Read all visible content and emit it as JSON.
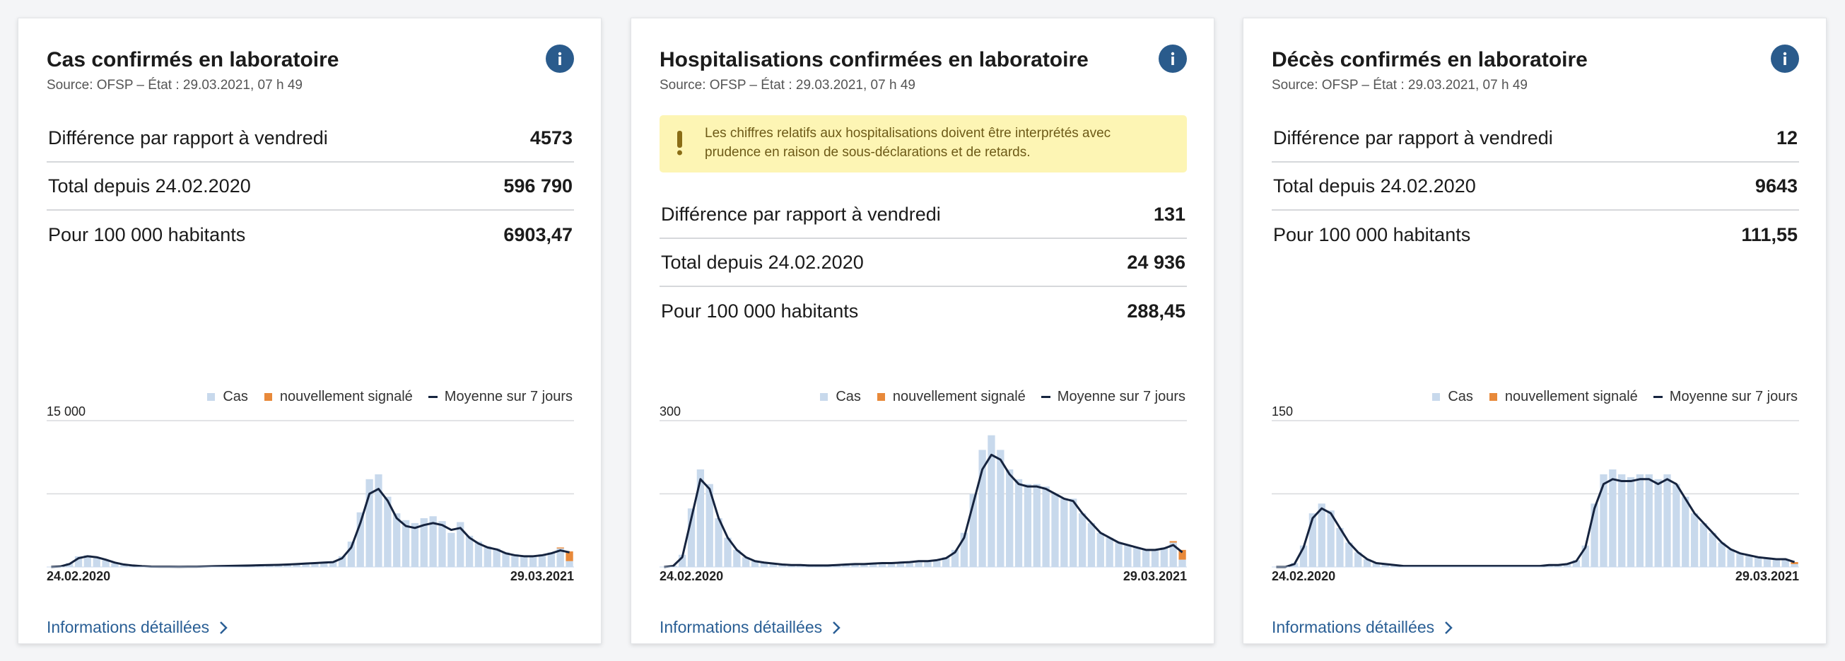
{
  "cards": [
    {
      "title": "Cas confirmés en laboratoire",
      "source": "Source: OFSP – État : 29.03.2021, 07 h 49",
      "rows": [
        {
          "label": "Différence par rapport à vendredi",
          "value": "4573"
        },
        {
          "label": "Total depuis 24.02.2020",
          "value": "596 790"
        },
        {
          "label": "Pour 100 000 habitants",
          "value": "6903,47"
        }
      ],
      "chart": {
        "type": "bar",
        "categories": [
          "24.02.2020",
          null,
          null,
          null,
          null,
          null,
          null,
          null,
          null,
          null,
          null,
          null,
          null,
          null,
          null,
          null,
          null,
          null,
          null,
          null,
          null,
          null,
          null,
          null,
          null,
          null,
          null,
          null,
          null,
          null,
          null,
          null,
          null,
          null,
          null,
          null,
          null,
          null,
          null,
          null,
          null,
          null,
          null,
          null,
          null,
          null,
          null,
          null,
          null,
          null,
          null,
          null,
          null,
          null,
          null,
          null,
          null,
          "29.03.2021"
        ],
        "ylim": [
          0,
          15000
        ],
        "yticks": [
          {
            "value": 7500,
            "label": null
          },
          {
            "value": 15000,
            "label": "15 000"
          }
        ],
        "grid": true,
        "series": [
          {
            "name": "Cas",
            "color": "#c8d9ec",
            "values": [
              10,
              80,
              400,
              1100,
              1200,
              900,
              700,
              400,
              250,
              150,
              80,
              40,
              30,
              20,
              20,
              30,
              30,
              60,
              90,
              110,
              130,
              150,
              160,
              190,
              220,
              230,
              270,
              320,
              380,
              420,
              480,
              560,
              1100,
              2600,
              5600,
              9000,
              9500,
              7200,
              5500,
              4800,
              4500,
              5000,
              5200,
              4700,
              3500,
              4600,
              3200,
              2600,
              2100,
              1900,
              1500,
              1300,
              1200,
              1200,
              1300,
              1500,
              1900,
              600
            ]
          },
          {
            "name": "nouvellement signalé",
            "color": "#e8893a",
            "values": [
              null,
              null,
              null,
              null,
              null,
              null,
              null,
              null,
              null,
              null,
              null,
              null,
              null,
              null,
              null,
              null,
              null,
              null,
              null,
              null,
              null,
              null,
              null,
              null,
              null,
              null,
              null,
              null,
              null,
              null,
              null,
              null,
              null,
              null,
              null,
              null,
              null,
              null,
              null,
              null,
              null,
              null,
              null,
              null,
              null,
              null,
              null,
              null,
              null,
              null,
              null,
              null,
              null,
              null,
              null,
              null,
              100,
              1000
            ]
          },
          {
            "name": "Moyenne sur 7 jours",
            "color": "#16243f",
            "type": "line",
            "values": [
              5,
              50,
              300,
              900,
              1100,
              1000,
              750,
              450,
              250,
              150,
              80,
              40,
              30,
              25,
              20,
              25,
              30,
              50,
              80,
              100,
              120,
              140,
              150,
              180,
              200,
              220,
              250,
              300,
              350,
              400,
              450,
              500,
              900,
              2000,
              4500,
              7500,
              8000,
              6800,
              5000,
              4200,
              4000,
              4300,
              4500,
              4300,
              3800,
              4000,
              3000,
              2400,
              2000,
              1800,
              1400,
              1200,
              1100,
              1100,
              1200,
              1400,
              1700,
              1500
            ]
          }
        ]
      },
      "link": "Informations détaillées"
    },
    {
      "title": "Hospitalisations confirmées en laboratoire",
      "source": "Source: OFSP – État : 29.03.2021, 07 h 49",
      "notice": "Les chiffres relatifs aux hospitalisations doivent être interprétés avec prudence en raison de sous-déclarations et de retards.",
      "rows": [
        {
          "label": "Différence par rapport à vendredi",
          "value": "131"
        },
        {
          "label": "Total depuis 24.02.2020",
          "value": "24 936"
        },
        {
          "label": "Pour 100 000 habitants",
          "value": "288,45"
        }
      ],
      "chart": {
        "type": "bar",
        "categories": [
          "24.02.2020",
          null,
          null,
          null,
          null,
          null,
          null,
          null,
          null,
          null,
          null,
          null,
          null,
          null,
          null,
          null,
          null,
          null,
          null,
          null,
          null,
          null,
          null,
          null,
          null,
          null,
          null,
          null,
          null,
          null,
          null,
          null,
          null,
          null,
          null,
          null,
          null,
          null,
          null,
          null,
          null,
          null,
          null,
          null,
          null,
          null,
          null,
          null,
          null,
          null,
          null,
          null,
          null,
          null,
          null,
          null,
          null,
          "29.03.2021"
        ],
        "ylim": [
          0,
          300
        ],
        "yticks": [
          {
            "value": 150,
            "label": null
          },
          300
        ],
        "grid": true,
        "series": [
          {
            "name": "Cas",
            "color": "#c8d9ec",
            "values": [
              0,
              3,
              25,
              120,
              200,
              170,
              100,
              60,
              35,
              20,
              12,
              9,
              7,
              5,
              4,
              4,
              3,
              3,
              3,
              4,
              5,
              6,
              6,
              7,
              8,
              8,
              9,
              10,
              12,
              12,
              14,
              20,
              35,
              70,
              150,
              240,
              270,
              240,
              200,
              180,
              170,
              170,
              165,
              150,
              140,
              140,
              110,
              90,
              70,
              60,
              50,
              45,
              40,
              35,
              35,
              40,
              50,
              15
            ]
          },
          {
            "name": "nouvellement signalé",
            "color": "#e8893a",
            "values": [
              null,
              null,
              null,
              null,
              null,
              null,
              null,
              null,
              null,
              null,
              null,
              null,
              null,
              null,
              null,
              null,
              null,
              null,
              null,
              null,
              null,
              null,
              null,
              null,
              null,
              null,
              null,
              null,
              null,
              null,
              null,
              null,
              null,
              null,
              null,
              null,
              null,
              null,
              null,
              null,
              null,
              null,
              null,
              null,
              null,
              null,
              null,
              null,
              null,
              null,
              null,
              null,
              null,
              null,
              null,
              null,
              3,
              20
            ]
          },
          {
            "name": "Moyenne sur 7 jours",
            "color": "#16243f",
            "type": "line",
            "values": [
              0,
              2,
              20,
              100,
              180,
              160,
              100,
              60,
              35,
              20,
              12,
              9,
              7,
              5,
              4,
              4,
              3,
              3,
              3,
              4,
              5,
              6,
              6,
              7,
              8,
              8,
              9,
              10,
              12,
              12,
              14,
              18,
              30,
              60,
              130,
              200,
              230,
              220,
              190,
              170,
              165,
              165,
              160,
              150,
              140,
              135,
              110,
              90,
              70,
              60,
              50,
              45,
              40,
              35,
              35,
              38,
              45,
              30
            ]
          }
        ]
      },
      "link": "Informations détaillées"
    },
    {
      "title": "Décès confirmés en laboratoire",
      "source": "Source: OFSP – État : 29.03.2021, 07 h 49",
      "rows": [
        {
          "label": "Différence par rapport à vendredi",
          "value": "12"
        },
        {
          "label": "Total depuis 24.02.2020",
          "value": "9643"
        },
        {
          "label": "Pour 100 000 habitants",
          "value": "111,55"
        }
      ],
      "chart": {
        "type": "bar",
        "categories": [
          "24.02.2020",
          null,
          null,
          null,
          null,
          null,
          null,
          null,
          null,
          null,
          null,
          null,
          null,
          null,
          null,
          null,
          null,
          null,
          null,
          null,
          null,
          null,
          null,
          null,
          null,
          null,
          null,
          null,
          null,
          null,
          null,
          null,
          null,
          null,
          null,
          null,
          null,
          null,
          null,
          null,
          null,
          null,
          null,
          null,
          null,
          null,
          null,
          null,
          null,
          null,
          null,
          null,
          null,
          null,
          null,
          null,
          null,
          "29.03.2021"
        ],
        "ylim": [
          0,
          150
        ],
        "yticks": [
          {
            "value": 75,
            "label": null
          },
          150
        ],
        "grid": true,
        "series": [
          {
            "name": "Cas",
            "color": "#c8d9ec",
            "values": [
              0,
              0,
              4,
              22,
              55,
              65,
              58,
              40,
              25,
              15,
              8,
              4,
              3,
              2,
              1,
              1,
              1,
              1,
              1,
              1,
              1,
              1,
              1,
              1,
              1,
              1,
              1,
              1,
              1,
              1,
              2,
              2,
              3,
              7,
              22,
              65,
              95,
              100,
              95,
              92,
              95,
              95,
              90,
              95,
              85,
              72,
              55,
              45,
              35,
              25,
              18,
              14,
              12,
              10,
              9,
              8,
              8,
              3
            ]
          },
          {
            "name": "nouvellement signalé",
            "color": "#e8893a",
            "values": [
              null,
              null,
              null,
              null,
              null,
              null,
              null,
              null,
              null,
              null,
              null,
              null,
              null,
              null,
              null,
              null,
              null,
              null,
              null,
              null,
              null,
              null,
              null,
              null,
              null,
              null,
              null,
              null,
              null,
              null,
              null,
              null,
              null,
              null,
              null,
              null,
              null,
              null,
              null,
              null,
              null,
              null,
              null,
              null,
              null,
              null,
              null,
              null,
              null,
              null,
              null,
              null,
              null,
              null,
              null,
              null,
              null,
              2
            ]
          },
          {
            "name": "Moyenne sur 7 jours",
            "color": "#16243f",
            "type": "line",
            "values": [
              0,
              0,
              3,
              20,
              50,
              60,
              55,
              40,
              25,
              15,
              8,
              4,
              3,
              2,
              1,
              1,
              1,
              1,
              1,
              1,
              1,
              1,
              1,
              1,
              1,
              1,
              1,
              1,
              1,
              1,
              2,
              2,
              3,
              6,
              20,
              60,
              85,
              90,
              88,
              88,
              90,
              90,
              85,
              90,
              85,
              70,
              55,
              45,
              35,
              25,
              18,
              14,
              12,
              10,
              9,
              8,
              8,
              5
            ]
          }
        ]
      },
      "link": "Informations détaillées"
    }
  ]
}
